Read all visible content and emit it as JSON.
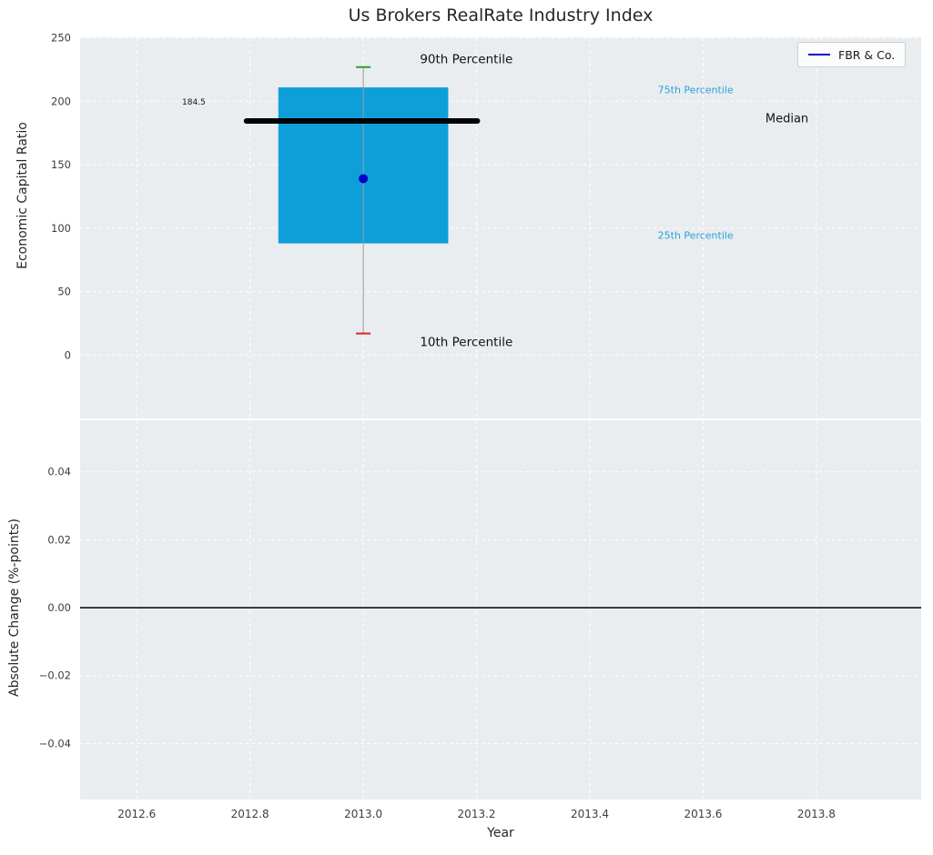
{
  "title": "Us Brokers RealRate Industry Index",
  "legend": {
    "label": "FBR & Co.",
    "line_color": "#0000cc"
  },
  "colors": {
    "plot_bg": "#e9edf0",
    "grid": "#ffffff",
    "box_fill": "#0f9fd8",
    "median_line": "#000000",
    "whisker": "#999999",
    "cap_top": "#2ca02c",
    "cap_bottom": "#d62728",
    "company_dot": "#0000cc",
    "tick_label": "#3d3d3d",
    "zero_line": "#000000"
  },
  "x_axis": {
    "label": "Year",
    "xlim": [
      2012.5,
      2013.985
    ],
    "ticks": [
      2012.6,
      2012.8,
      2013.0,
      2013.2,
      2013.4,
      2013.6,
      2013.8
    ],
    "tick_labels": [
      "2012.6",
      "2012.8",
      "2013.0",
      "2013.2",
      "2013.4",
      "2013.6",
      "2013.8"
    ]
  },
  "chart_data": [
    {
      "type": "box",
      "title": "Us Brokers RealRate Industry Index",
      "ylabel": "Economic Capital Ratio",
      "x": 2013.0,
      "box_width": 0.3,
      "stats": {
        "p10": 17,
        "p25": 88,
        "median": 184.5,
        "p75": 211,
        "p90": 227
      },
      "company": {
        "name": "FBR & Co.",
        "value": 139,
        "x": 2013.0
      },
      "median_label": "184.5",
      "ylim": [
        -50,
        250.5
      ],
      "yticks": [
        0,
        50,
        100,
        150,
        200,
        250
      ],
      "ytick_labels": [
        "0",
        "50",
        "100",
        "150",
        "200",
        "250"
      ],
      "annotations": [
        {
          "text": "90th Percentile",
          "x": 2013.1,
          "y": 233,
          "color": "#111111",
          "size": 13.5,
          "anchor": "start"
        },
        {
          "text": "10th Percentile",
          "x": 2013.1,
          "y": 10,
          "color": "#111111",
          "size": 13.5,
          "anchor": "start"
        },
        {
          "text": "75th Percentile",
          "x": 2013.52,
          "y": 209,
          "color": "#29a3d7",
          "size": 11,
          "anchor": "start"
        },
        {
          "text": "25th Percentile",
          "x": 2013.52,
          "y": 94,
          "color": "#29a3d7",
          "size": 11,
          "anchor": "start"
        },
        {
          "text": "Median",
          "x": 2013.71,
          "y": 186,
          "color": "#111111",
          "size": 13,
          "anchor": "start"
        },
        {
          "text": "184.5",
          "x": 2012.68,
          "y": 199,
          "color": "#111111",
          "size": 9,
          "anchor": "start"
        }
      ]
    },
    {
      "type": "line",
      "ylabel": "Absolute Change (%-points)",
      "xlabel": "Year",
      "ylim": [
        -0.0565,
        0.0552
      ],
      "yticks": [
        -0.04,
        -0.02,
        0,
        0.02,
        0.04
      ],
      "ytick_labels": [
        "−0.04",
        "−0.02",
        "0.00",
        "0.02",
        "0.04"
      ],
      "zero_line": 0,
      "series": []
    }
  ]
}
